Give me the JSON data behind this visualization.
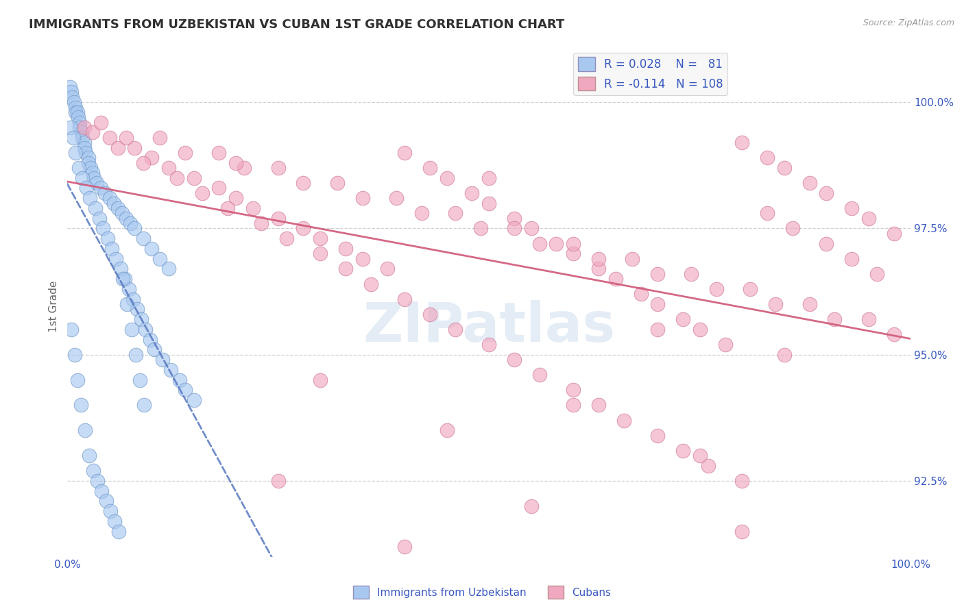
{
  "title": "IMMIGRANTS FROM UZBEKISTAN VS CUBAN 1ST GRADE CORRELATION CHART",
  "source_text": "Source: ZipAtlas.com",
  "ylabel": "1st Grade",
  "x_min": 0.0,
  "x_max": 100.0,
  "y_min": 91.0,
  "y_max": 100.9,
  "legend_label1": "Immigrants from Uzbekistan",
  "legend_label2": "Cubans",
  "watermark": "ZIPatlas",
  "blue_color": "#a8c8f0",
  "blue_edge_color": "#7098c8",
  "pink_color": "#f0a8c0",
  "pink_edge_color": "#d07898",
  "blue_line_color": "#5878c0",
  "pink_line_color": "#d05878",
  "legend_text_color": "#3858c0",
  "title_color": "#303030",
  "grid_color": "#d0d0d0",
  "ytick_vals": [
    92.5,
    95.0,
    97.5,
    100.0
  ],
  "ytick_labels": [
    "92.5%",
    "95.0%",
    "97.5%",
    "100.0%"
  ],
  "blue_scatter_x": [
    0.3,
    0.5,
    0.6,
    0.8,
    1.0,
    1.0,
    1.2,
    1.3,
    1.5,
    1.5,
    1.7,
    1.8,
    2.0,
    2.0,
    2.2,
    2.5,
    2.5,
    2.8,
    3.0,
    3.2,
    3.5,
    4.0,
    4.5,
    5.0,
    5.5,
    6.0,
    6.5,
    7.0,
    7.5,
    8.0,
    9.0,
    10.0,
    11.0,
    12.0,
    0.4,
    0.7,
    1.0,
    1.4,
    1.8,
    2.3,
    2.7,
    3.3,
    3.8,
    4.2,
    4.8,
    5.3,
    5.8,
    6.3,
    6.8,
    7.3,
    7.8,
    8.3,
    8.8,
    9.3,
    9.8,
    10.3,
    11.3,
    12.3,
    13.3,
    14.0,
    15.0,
    0.5,
    0.9,
    1.2,
    1.6,
    2.1,
    2.6,
    3.1,
    3.6,
    4.1,
    4.6,
    5.1,
    5.6,
    6.1,
    6.6,
    7.1,
    7.6,
    8.1,
    8.6,
    9.1
  ],
  "blue_scatter_y": [
    100.3,
    100.2,
    100.1,
    100.0,
    99.9,
    99.8,
    99.8,
    99.7,
    99.6,
    99.5,
    99.4,
    99.3,
    99.2,
    99.1,
    99.0,
    98.9,
    98.8,
    98.7,
    98.6,
    98.5,
    98.4,
    98.3,
    98.2,
    98.1,
    98.0,
    97.9,
    97.8,
    97.7,
    97.6,
    97.5,
    97.3,
    97.1,
    96.9,
    96.7,
    99.5,
    99.3,
    99.0,
    98.7,
    98.5,
    98.3,
    98.1,
    97.9,
    97.7,
    97.5,
    97.3,
    97.1,
    96.9,
    96.7,
    96.5,
    96.3,
    96.1,
    95.9,
    95.7,
    95.5,
    95.3,
    95.1,
    94.9,
    94.7,
    94.5,
    94.3,
    94.1,
    95.5,
    95.0,
    94.5,
    94.0,
    93.5,
    93.0,
    92.7,
    92.5,
    92.3,
    92.1,
    91.9,
    91.7,
    91.5,
    96.5,
    96.0,
    95.5,
    95.0,
    94.5,
    94.0
  ],
  "pink_scatter_x": [
    2.0,
    5.0,
    8.0,
    10.0,
    12.0,
    15.0,
    18.0,
    20.0,
    22.0,
    25.0,
    28.0,
    30.0,
    33.0,
    35.0,
    38.0,
    40.0,
    43.0,
    45.0,
    48.0,
    50.0,
    53.0,
    55.0,
    58.0,
    60.0,
    63.0,
    65.0,
    68.0,
    70.0,
    73.0,
    75.0,
    78.0,
    80.0,
    83.0,
    85.0,
    88.0,
    90.0,
    93.0,
    95.0,
    98.0,
    3.0,
    6.0,
    9.0,
    13.0,
    16.0,
    19.0,
    23.0,
    26.0,
    30.0,
    33.0,
    36.0,
    40.0,
    43.0,
    46.0,
    50.0,
    53.0,
    56.0,
    60.0,
    63.0,
    66.0,
    70.0,
    73.0,
    76.0,
    80.0,
    83.0,
    86.0,
    90.0,
    93.0,
    96.0,
    7.0,
    14.0,
    21.0,
    28.0,
    35.0,
    42.0,
    49.0,
    56.0,
    63.0,
    70.0,
    77.0,
    84.0,
    91.0,
    98.0,
    4.0,
    11.0,
    18.0,
    25.0,
    32.0,
    39.0,
    46.0,
    53.0,
    60.0,
    67.0,
    74.0,
    81.0,
    88.0,
    95.0,
    20.0,
    50.0,
    70.0,
    85.0,
    30.0,
    60.0,
    45.0,
    75.0,
    25.0,
    55.0,
    80.0,
    40.0
  ],
  "pink_scatter_y": [
    99.5,
    99.3,
    99.1,
    98.9,
    98.7,
    98.5,
    98.3,
    98.1,
    97.9,
    97.7,
    97.5,
    97.3,
    97.1,
    96.9,
    96.7,
    99.0,
    98.7,
    98.5,
    98.2,
    98.0,
    97.7,
    97.5,
    97.2,
    97.0,
    96.7,
    96.5,
    96.2,
    96.0,
    95.7,
    95.5,
    95.2,
    99.2,
    98.9,
    98.7,
    98.4,
    98.2,
    97.9,
    97.7,
    97.4,
    99.4,
    99.1,
    98.8,
    98.5,
    98.2,
    97.9,
    97.6,
    97.3,
    97.0,
    96.7,
    96.4,
    96.1,
    95.8,
    95.5,
    95.2,
    94.9,
    94.6,
    94.3,
    94.0,
    93.7,
    93.4,
    93.1,
    92.8,
    92.5,
    97.8,
    97.5,
    97.2,
    96.9,
    96.6,
    99.3,
    99.0,
    98.7,
    98.4,
    98.1,
    97.8,
    97.5,
    97.2,
    96.9,
    96.6,
    96.3,
    96.0,
    95.7,
    95.4,
    99.6,
    99.3,
    99.0,
    98.7,
    98.4,
    98.1,
    97.8,
    97.5,
    97.2,
    96.9,
    96.6,
    96.3,
    96.0,
    95.7,
    98.8,
    98.5,
    95.5,
    95.0,
    94.5,
    94.0,
    93.5,
    93.0,
    92.5,
    92.0,
    91.5,
    91.2
  ]
}
